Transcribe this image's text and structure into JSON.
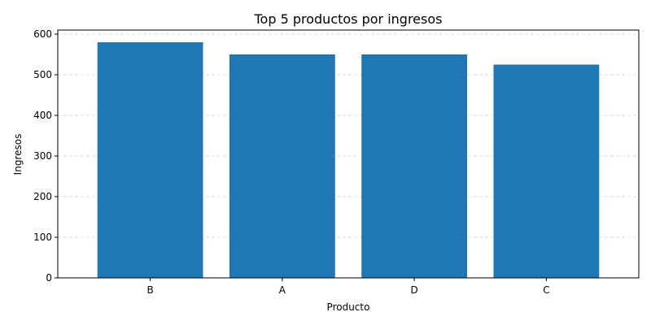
{
  "chart_data": {
    "type": "bar",
    "title": "Top 5 productos por ingresos",
    "xlabel": "Producto",
    "ylabel": "Ingresos",
    "categories": [
      "B",
      "A",
      "D",
      "C"
    ],
    "values": [
      580,
      550,
      550,
      525
    ],
    "ylim": [
      0,
      610
    ],
    "yticks": [
      0,
      100,
      200,
      300,
      400,
      500,
      600
    ],
    "grid": "y-dashed",
    "bar_color": "#1f77b4"
  }
}
